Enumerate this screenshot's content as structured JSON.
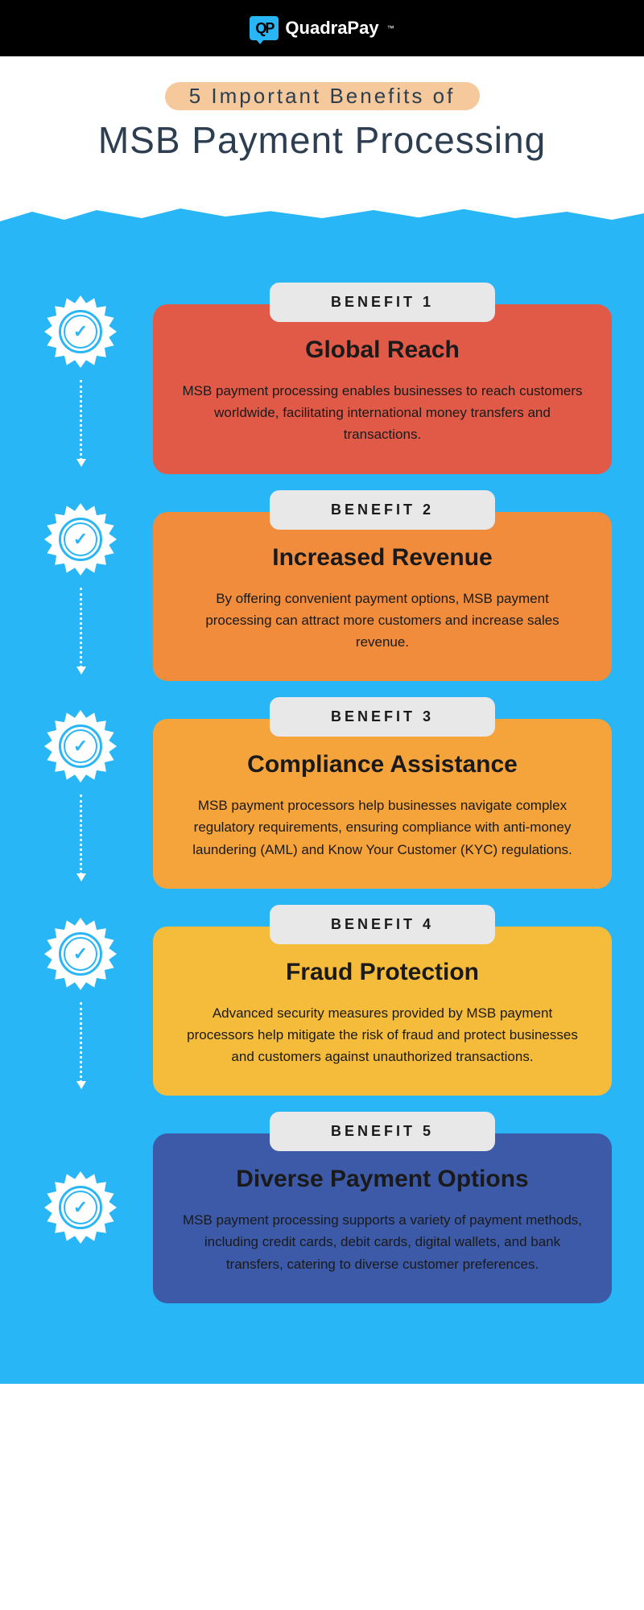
{
  "brand": {
    "name": "QuadraPay",
    "logo_glyph": "QP",
    "tm": "™"
  },
  "header": {
    "subtitle": "5 Important Benefits of",
    "title": "MSB Payment Processing"
  },
  "colors": {
    "background": "#29b6f6",
    "header_bar": "#000000",
    "brush": "#f5c99b",
    "label_bg": "#e8e8e8"
  },
  "benefits": [
    {
      "label": "BENEFIT 1",
      "title": "Global Reach",
      "description": "MSB payment processing enables businesses to reach customers worldwide, facilitating international money transfers and transactions.",
      "color": "#e15a47",
      "has_arrow": true
    },
    {
      "label": "BENEFIT 2",
      "title": "Increased Revenue",
      "description": "By offering convenient payment options, MSB payment processing can attract more customers and increase sales revenue.",
      "color": "#f08c3c",
      "has_arrow": true
    },
    {
      "label": "BENEFIT 3",
      "title": "Compliance Assistance",
      "description": "MSB payment processors help businesses navigate complex regulatory requirements, ensuring compliance with anti-money laundering (AML) and Know Your Customer (KYC) regulations.",
      "color": "#f5a33b",
      "has_arrow": true
    },
    {
      "label": "BENEFIT 4",
      "title": "Fraud Protection",
      "description": "Advanced security measures provided by MSB payment processors help mitigate the risk of fraud and protect businesses and customers against unauthorized transactions.",
      "color": "#f5bc3b",
      "has_arrow": true
    },
    {
      "label": "BENEFIT 5",
      "title": "Diverse Payment Options",
      "description": "MSB payment processing supports a variety of payment methods, including credit cards, debit cards, digital wallets, and bank transfers, catering to diverse customer preferences.",
      "color": "#3c5aa8",
      "has_arrow": false
    }
  ]
}
